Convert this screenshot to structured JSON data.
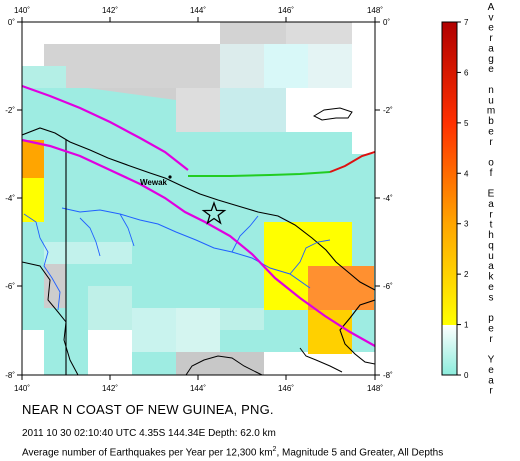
{
  "map": {
    "lon_ticks": [
      "140˚",
      "142˚",
      "144˚",
      "146˚",
      "148˚"
    ],
    "lat_ticks": [
      "0˚",
      "-2˚",
      "-4˚",
      "-6˚",
      "-8˚"
    ],
    "place_label": "Wewak",
    "epicenter_marker": "star-icon",
    "colors": {
      "water": "#ffffff",
      "coastline": "#000000",
      "rivers": "#2060ff",
      "plate_boundary": "#e000e0",
      "fault_green": "#22cc22",
      "fault_red": "#dd1111"
    }
  },
  "legend": {
    "title_chars": [
      "A",
      "v",
      "e",
      "r",
      "a",
      "g",
      "e",
      "",
      "n",
      "u",
      "m",
      "b",
      "e",
      "r",
      "",
      "o",
      "f",
      "",
      "E",
      "a",
      "r",
      "t",
      "h",
      "q",
      "u",
      "a",
      "k",
      "e",
      "s",
      "",
      "p",
      "e",
      "r",
      "",
      "Y",
      "e",
      "a",
      "r"
    ],
    "ticks": [
      "0",
      "1",
      "2",
      "3",
      "4",
      "5",
      "6",
      "7"
    ],
    "range": [
      0,
      7
    ],
    "stops": [
      {
        "value": 0,
        "color": "#8cecdc"
      },
      {
        "value": 1,
        "color": "#ffffff"
      },
      {
        "value": 1,
        "color": "#ffff00"
      },
      {
        "value": 3,
        "color": "#ffa500"
      },
      {
        "value": 5,
        "color": "#ff3000"
      },
      {
        "value": 7,
        "color": "#b00000"
      }
    ]
  },
  "caption": {
    "title": "NEAR N COAST OF NEW GUINEA, PNG.",
    "event": "2011 10 30 02:10:40 UTC 4.35S 144.34E Depth: 62.0 km",
    "note_before": "Average number of Earthquakes per Year per 12,300 km",
    "note_sup": "2",
    "note_after": ", Magnitude 5 and Greater, All Depths"
  }
}
